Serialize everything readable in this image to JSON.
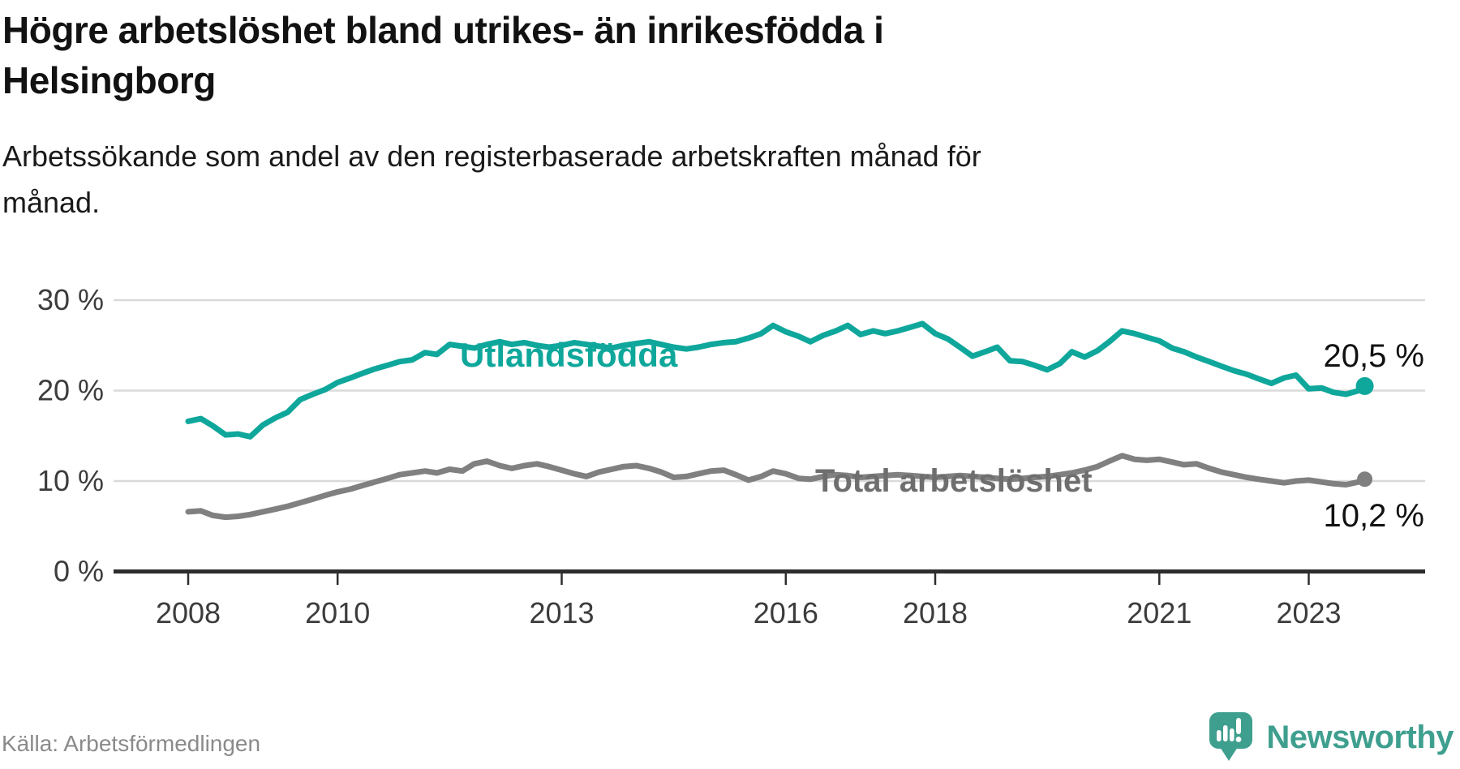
{
  "header": {
    "title": "Högre arbetslöshet bland utrikes- än inrikesfödda i Helsingborg",
    "title_lines": [
      "Högre arbetslöshet bland utrikes- än inrikesfödda i",
      "Helsingborg"
    ],
    "subtitle": "Arbetssökande som andel av den registerbaserade arbetskraften månad för månad.",
    "subtitle_lines": [
      "Arbetssökande som andel av den registerbaserade arbetskraften månad för",
      "månad."
    ]
  },
  "footer": {
    "source": "Källa: Arbetsförmedlingen",
    "brand": "Newsworthy"
  },
  "colors": {
    "teal_line": "#0fa79b",
    "gray_line": "#808080",
    "gray_label": "#6e6e6e",
    "logo_teal": "#3f9f8f",
    "grid": "#dadada",
    "axis": "#2d2d2d",
    "tick_text": "#3c3c3c",
    "value_text": "#121212",
    "source_text": "#8a8a8a"
  },
  "chart_data": {
    "type": "line",
    "title": "Högre arbetslöshet bland utrikes- än inrikesfödda i Helsingborg",
    "xlabel": "",
    "ylabel": "Arbetssökande som andel av den registerbaserade arbetskraften (%)",
    "grid": "horizontal",
    "x_range": [
      2007.6,
      2024.1
    ],
    "ylim": [
      0,
      32
    ],
    "x_axis": {
      "ticks": [
        2008,
        2010,
        2013,
        2016,
        2018,
        2021,
        2023
      ],
      "tick_labels": [
        "2008",
        "2010",
        "2013",
        "2016",
        "2018",
        "2021",
        "2023"
      ]
    },
    "y_axis": {
      "ticks": [
        0,
        10,
        20,
        30
      ],
      "tick_labels": [
        "0 %",
        "10 %",
        "20 %",
        "30 %"
      ],
      "gridlines": [
        10,
        20,
        30
      ]
    },
    "x": [
      2008.0,
      2008.17,
      2008.33,
      2008.5,
      2008.67,
      2008.83,
      2009.0,
      2009.17,
      2009.33,
      2009.5,
      2009.67,
      2009.83,
      2010.0,
      2010.17,
      2010.33,
      2010.5,
      2010.67,
      2010.83,
      2011.0,
      2011.17,
      2011.33,
      2011.5,
      2011.67,
      2011.83,
      2012.0,
      2012.17,
      2012.33,
      2012.5,
      2012.67,
      2012.83,
      2013.0,
      2013.17,
      2013.33,
      2013.5,
      2013.67,
      2013.83,
      2014.0,
      2014.17,
      2014.33,
      2014.5,
      2014.67,
      2014.83,
      2015.0,
      2015.17,
      2015.33,
      2015.5,
      2015.67,
      2015.83,
      2016.0,
      2016.17,
      2016.33,
      2016.5,
      2016.67,
      2016.83,
      2017.0,
      2017.17,
      2017.33,
      2017.5,
      2017.67,
      2017.83,
      2018.0,
      2018.17,
      2018.33,
      2018.5,
      2018.67,
      2018.83,
      2019.0,
      2019.17,
      2019.33,
      2019.5,
      2019.67,
      2019.83,
      2020.0,
      2020.17,
      2020.33,
      2020.5,
      2020.67,
      2020.83,
      2021.0,
      2021.17,
      2021.33,
      2021.5,
      2021.67,
      2021.83,
      2022.0,
      2022.17,
      2022.33,
      2022.5,
      2022.67,
      2022.83,
      2023.0,
      2023.17,
      2023.33,
      2023.5,
      2023.67,
      2023.75
    ],
    "series": [
      {
        "name": "Utlandsfödda",
        "color": "#0fa79b",
        "label_color": "#0fa79b",
        "end_value": 20.5,
        "end_label": "20,5 %",
        "values": [
          16.6,
          16.9,
          16.1,
          15.1,
          15.2,
          14.9,
          16.2,
          17.0,
          17.6,
          19.0,
          19.6,
          20.1,
          20.9,
          21.4,
          21.9,
          22.4,
          22.8,
          23.2,
          23.4,
          24.2,
          24.0,
          25.1,
          24.9,
          24.7,
          25.1,
          25.4,
          25.1,
          25.3,
          25.0,
          24.8,
          25.0,
          25.3,
          25.1,
          24.9,
          24.7,
          25.0,
          25.2,
          25.4,
          25.1,
          24.8,
          24.6,
          24.8,
          25.1,
          25.3,
          25.4,
          25.8,
          26.3,
          27.2,
          26.5,
          26.0,
          25.4,
          26.1,
          26.6,
          27.2,
          26.2,
          26.6,
          26.3,
          26.6,
          27.0,
          27.4,
          26.3,
          25.7,
          24.8,
          23.8,
          24.3,
          24.8,
          23.3,
          23.2,
          22.8,
          22.3,
          23.0,
          24.3,
          23.7,
          24.4,
          25.4,
          26.6,
          26.3,
          25.9,
          25.5,
          24.7,
          24.3,
          23.7,
          23.2,
          22.7,
          22.2,
          21.8,
          21.3,
          20.8,
          21.4,
          21.7,
          20.2,
          20.3,
          19.8,
          19.6,
          20.0,
          20.5
        ]
      },
      {
        "name": "Total arbetslöshet",
        "color": "#808080",
        "label_color": "#6e6e6e",
        "end_value": 10.2,
        "end_label": "10,2 %",
        "values": [
          6.6,
          6.7,
          6.2,
          6.0,
          6.1,
          6.3,
          6.6,
          6.9,
          7.2,
          7.6,
          8.0,
          8.4,
          8.8,
          9.1,
          9.5,
          9.9,
          10.3,
          10.7,
          10.9,
          11.1,
          10.9,
          11.3,
          11.1,
          11.9,
          12.2,
          11.7,
          11.4,
          11.7,
          11.9,
          11.6,
          11.2,
          10.8,
          10.5,
          11.0,
          11.3,
          11.6,
          11.7,
          11.4,
          11.0,
          10.4,
          10.5,
          10.8,
          11.1,
          11.2,
          10.7,
          10.1,
          10.5,
          11.1,
          10.8,
          10.3,
          10.2,
          10.5,
          10.7,
          10.6,
          10.4,
          10.5,
          10.6,
          10.7,
          10.6,
          10.5,
          10.4,
          10.5,
          10.6,
          10.5,
          10.4,
          10.3,
          10.2,
          10.3,
          10.4,
          10.5,
          10.7,
          10.9,
          11.2,
          11.6,
          12.2,
          12.8,
          12.4,
          12.3,
          12.4,
          12.1,
          11.8,
          11.9,
          11.4,
          11.0,
          10.7,
          10.4,
          10.2,
          10.0,
          9.8,
          10.0,
          10.1,
          9.9,
          9.7,
          9.6,
          9.9,
          10.2
        ]
      }
    ],
    "legend_position": "inline-labels"
  }
}
